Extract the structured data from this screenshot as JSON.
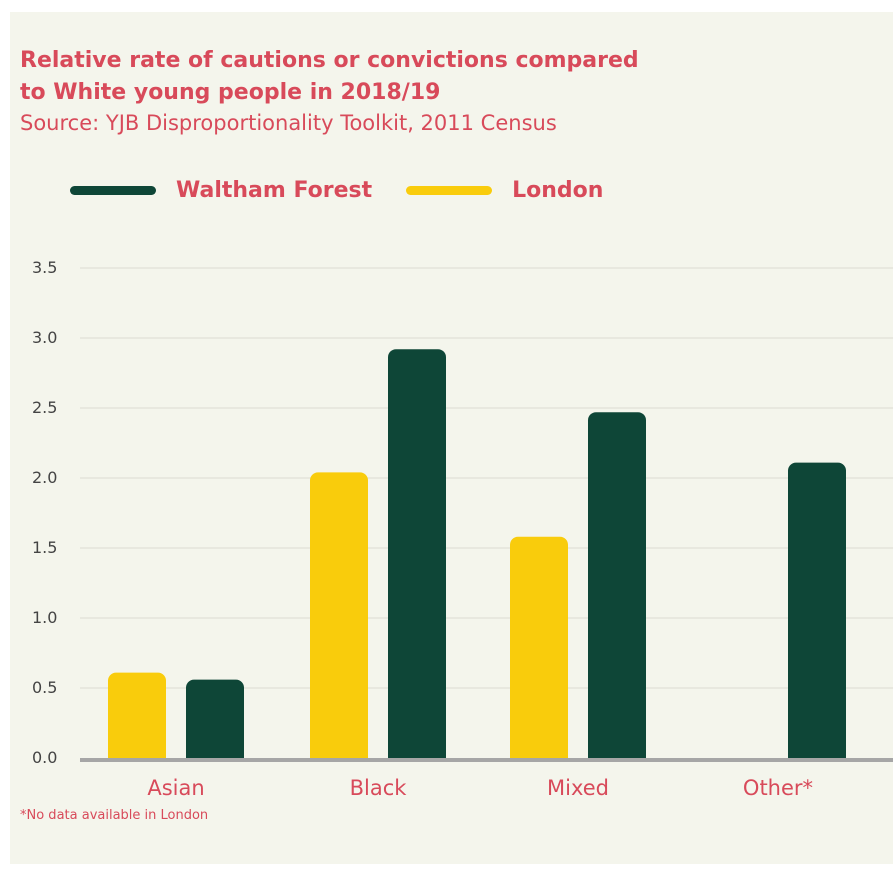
{
  "title_lines": [
    "Relative rate of cautions or convictions compared",
    "to White young people in 2018/19"
  ],
  "source": "Source: YJB Disproportionality Toolkit, 2011 Census",
  "footnote": "*No data available in London",
  "colors": {
    "waltham_forest": "#0e4637",
    "london": "#f9cc0c",
    "text_accent": "#d84a5a",
    "axis_text": "#444444",
    "grid": "#dcdcd2",
    "baseline": "#a6a6a6",
    "background": "#f4f5ec"
  },
  "chart_data": {
    "type": "bar",
    "title": "Relative rate of cautions or convictions compared to White young people in 2018/19",
    "subtitle": "Source: YJB Disproportionality Toolkit, 2011 Census",
    "categories": [
      "Asian",
      "Black",
      "Mixed",
      "Other*"
    ],
    "series": [
      {
        "name": "London",
        "color": "#f9cc0c",
        "values": [
          0.61,
          2.04,
          1.58,
          null
        ]
      },
      {
        "name": "Waltham Forest",
        "color": "#0e4637",
        "values": [
          0.56,
          2.92,
          2.47,
          2.11
        ]
      }
    ],
    "legend_order": [
      "Waltham Forest",
      "London"
    ],
    "legend_position": "top-left",
    "yticks": [
      "0.0",
      "0.5",
      "1.0",
      "1.5",
      "2.0",
      "2.5",
      "3.0",
      "3.5"
    ],
    "ylim": [
      0,
      3.5
    ],
    "grid": true,
    "xlabel": "",
    "ylabel": ""
  }
}
